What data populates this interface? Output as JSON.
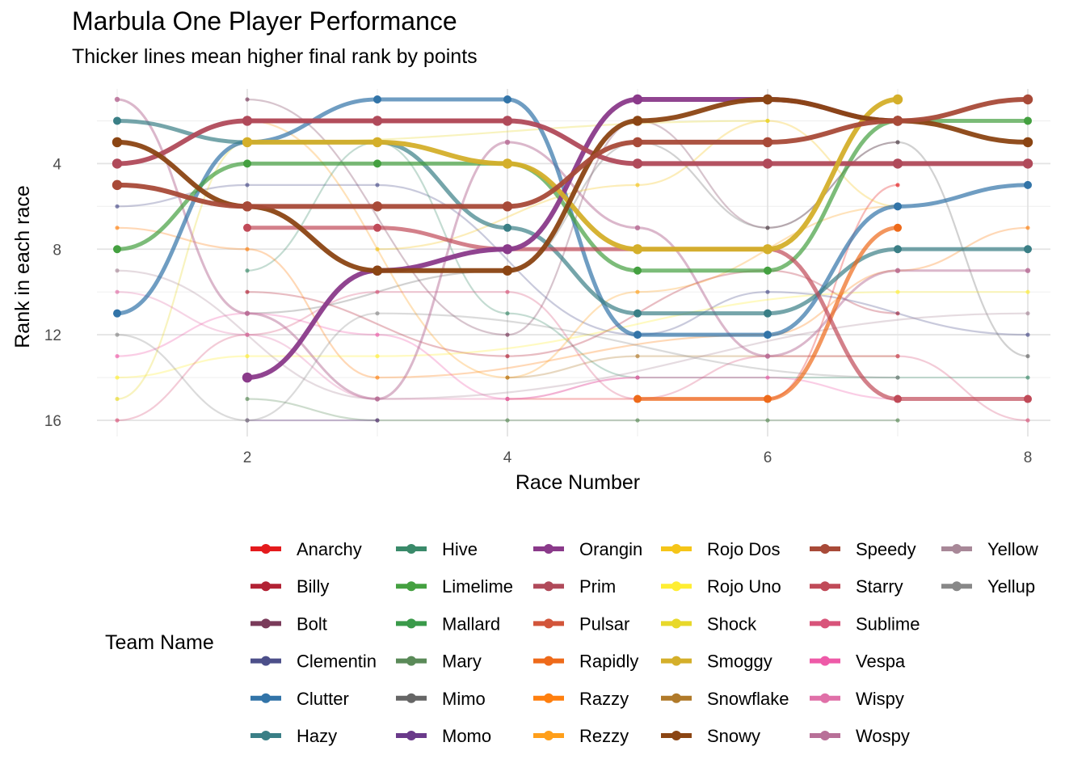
{
  "chart_data": {
    "type": "line",
    "title": "Marbula One Player Performance",
    "subtitle": "Thicker lines mean higher final rank by points",
    "xlabel": "Race Number",
    "ylabel": "Rank in each race",
    "xlim": [
      1,
      8
    ],
    "ylim": [
      16,
      1
    ],
    "x_ticks": [
      2,
      4,
      6,
      8
    ],
    "y_ticks": [
      4,
      8,
      12,
      16
    ],
    "y_reversed": true,
    "grid": true,
    "legend_title": "Team Name",
    "legend_position": "bottom",
    "x": [
      1,
      2,
      3,
      4,
      5,
      6,
      7,
      8
    ],
    "series": [
      {
        "name": "Anarchy",
        "color": "#e41a1c",
        "values": [
          null,
          null,
          null,
          15,
          15,
          15,
          5,
          null
        ],
        "emphasis": 0
      },
      {
        "name": "Billy",
        "color": "#b22234",
        "values": [
          null,
          10,
          null,
          13,
          null,
          9,
          11,
          null
        ],
        "emphasis": 0
      },
      {
        "name": "Bolt",
        "color": "#7a3b5a",
        "values": [
          null,
          1,
          null,
          12,
          2,
          7,
          3,
          null
        ],
        "emphasis": 0
      },
      {
        "name": "Clementin",
        "color": "#4c4f8a",
        "values": [
          6,
          5,
          5,
          null,
          12,
          10,
          null,
          12
        ],
        "emphasis": 0
      },
      {
        "name": "Clutter",
        "color": "#3274a8",
        "values": [
          11,
          3,
          1,
          1,
          12,
          12,
          6,
          5
        ],
        "emphasis": 2
      },
      {
        "name": "Hazy",
        "color": "#3a7f86",
        "values": [
          2,
          3,
          3,
          7,
          11,
          11,
          8,
          8
        ],
        "emphasis": 2
      },
      {
        "name": "Hive",
        "color": "#3a8a6a",
        "values": [
          null,
          9,
          3,
          11,
          14,
          null,
          14,
          14
        ],
        "emphasis": 0
      },
      {
        "name": "Limelime",
        "color": "#44a040",
        "values": [
          8,
          4,
          4,
          4,
          9,
          9,
          2,
          2
        ],
        "emphasis": 2
      },
      {
        "name": "Mallard",
        "color": "#3a9a4a",
        "values": [
          null,
          null,
          null,
          null,
          4,
          null,
          null,
          null
        ],
        "emphasis": 0
      },
      {
        "name": "Mary",
        "color": "#5a8a58",
        "values": [
          null,
          15,
          16,
          16,
          16,
          16,
          16,
          null
        ],
        "emphasis": 0
      },
      {
        "name": "Mimo",
        "color": "#666666",
        "values": [
          null,
          11,
          null,
          9,
          3,
          7,
          3,
          13
        ],
        "emphasis": 0
      },
      {
        "name": "Momo",
        "color": "#6a3a8a",
        "values": [
          null,
          16,
          16,
          null,
          null,
          null,
          null,
          null
        ],
        "emphasis": 0
      },
      {
        "name": "Orangin",
        "color": "#8a3a8a",
        "values": [
          null,
          14,
          9,
          8,
          1,
          1,
          2,
          null
        ],
        "emphasis": 3
      },
      {
        "name": "Prim",
        "color": "#b04a5a",
        "values": [
          4,
          2,
          2,
          2,
          4,
          4,
          4,
          4
        ],
        "emphasis": 3
      },
      {
        "name": "Pulsar",
        "color": "#d2553a",
        "values": [
          null,
          2,
          2,
          2,
          null,
          null,
          null,
          null
        ],
        "emphasis": 2
      },
      {
        "name": "Rapidly",
        "color": "#ee6a1a",
        "values": [
          null,
          null,
          null,
          null,
          15,
          15,
          7,
          null
        ],
        "emphasis": 2
      },
      {
        "name": "Razzy",
        "color": "#ff7f0e",
        "values": [
          7,
          8,
          14,
          null,
          null,
          12,
          9,
          7
        ],
        "emphasis": 0
      },
      {
        "name": "Rezzy",
        "color": "#ff9f1a",
        "values": [
          null,
          2,
          null,
          14,
          10,
          null,
          6,
          null
        ],
        "emphasis": 0
      },
      {
        "name": "Rojo Dos",
        "color": "#f5c518",
        "values": [
          null,
          null,
          8,
          null,
          5,
          2,
          6,
          null
        ],
        "emphasis": 0
      },
      {
        "name": "Rojo Uno",
        "color": "#ffee33",
        "values": [
          14,
          13,
          13,
          null,
          null,
          null,
          10,
          10
        ],
        "emphasis": 0
      },
      {
        "name": "Shock",
        "color": "#e8d82a",
        "values": [
          15,
          3,
          null,
          null,
          null,
          2,
          null,
          null
        ],
        "emphasis": 0
      },
      {
        "name": "Smoggy",
        "color": "#d4af2a",
        "values": [
          null,
          3,
          3,
          4,
          8,
          8,
          1,
          null
        ],
        "emphasis": 3
      },
      {
        "name": "Snowflake",
        "color": "#b07a2a",
        "values": [
          null,
          null,
          null,
          14,
          13,
          null,
          13,
          null
        ],
        "emphasis": 0
      },
      {
        "name": "Snowy",
        "color": "#8b4513",
        "values": [
          3,
          6,
          9,
          9,
          2,
          1,
          2,
          3
        ],
        "emphasis": 3
      },
      {
        "name": "Speedy",
        "color": "#a84a38",
        "values": [
          5,
          6,
          6,
          6,
          3,
          3,
          2,
          1
        ],
        "emphasis": 3
      },
      {
        "name": "Starry",
        "color": "#c04a58",
        "values": [
          null,
          7,
          7,
          8,
          8,
          8,
          15,
          15
        ],
        "emphasis": 2
      },
      {
        "name": "Sublime",
        "color": "#d8547a",
        "values": [
          16,
          12,
          10,
          10,
          15,
          13,
          13,
          16
        ],
        "emphasis": 0
      },
      {
        "name": "Vespa",
        "color": "#ee5aa8",
        "values": [
          13,
          11,
          12,
          15,
          14,
          14,
          15,
          null
        ],
        "emphasis": 0
      },
      {
        "name": "Wispy",
        "color": "#e070a8",
        "values": [
          10,
          12,
          15,
          15,
          14,
          null,
          null,
          null
        ],
        "emphasis": 0
      },
      {
        "name": "Wospy",
        "color": "#b87098",
        "values": [
          1,
          11,
          15,
          3,
          7,
          13,
          9,
          9
        ],
        "emphasis": 1
      },
      {
        "name": "Yellow",
        "color": "#a88898",
        "values": [
          9,
          null,
          15,
          null,
          null,
          null,
          null,
          11
        ],
        "emphasis": 0
      },
      {
        "name": "Yellup",
        "color": "#888888",
        "values": [
          12,
          16,
          11,
          null,
          null,
          null,
          14,
          null
        ],
        "emphasis": 0
      }
    ]
  }
}
